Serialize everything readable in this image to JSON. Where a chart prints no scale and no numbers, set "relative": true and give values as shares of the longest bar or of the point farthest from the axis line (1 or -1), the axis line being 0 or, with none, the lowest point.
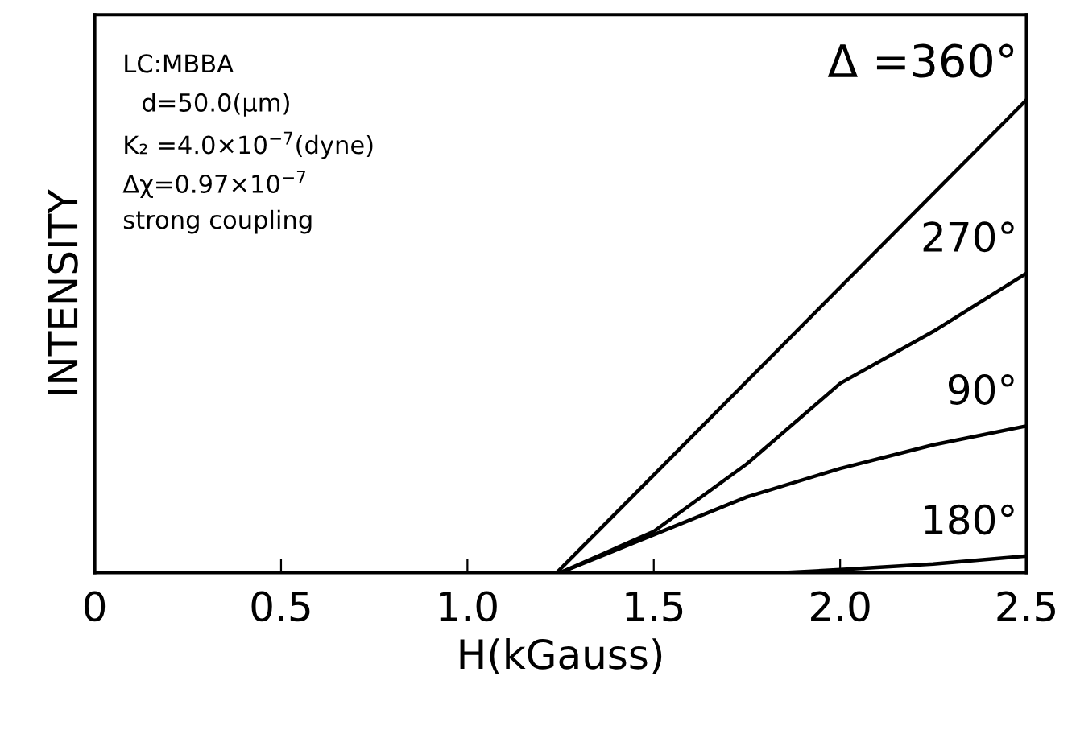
{
  "chart_data": {
    "type": "line",
    "relative": true,
    "xlabel": "H(kGauss)",
    "ylabel": "INTENSITY",
    "xlim": [
      0,
      2.5
    ],
    "xticks": [
      0,
      {
        "value": 0.5,
        "label": "0.5"
      },
      {
        "value": 1.0,
        "label": "1.0"
      },
      {
        "value": 1.5,
        "label": "1.5"
      },
      {
        "value": 2.0,
        "label": "2.0"
      },
      {
        "value": 2.5,
        "label": "2.5"
      }
    ],
    "tick_labels": "x",
    "grid": false,
    "legend": false,
    "marker": "none",
    "line_style": "solid",
    "series": [
      {
        "name": "Δ =360°",
        "color": "#000000",
        "x": [
          1.24,
          2.5
        ],
        "values": [
          0,
          1.0
        ]
      },
      {
        "name": "270°",
        "color": "#000000",
        "x": [
          1.25,
          1.5,
          1.75,
          2.0,
          2.25,
          2.5
        ],
        "values": [
          0,
          0.087,
          0.23,
          0.4,
          0.51,
          0.633
        ]
      },
      {
        "name": "90°",
        "color": "#000000",
        "x": [
          1.25,
          1.5,
          1.75,
          2.0,
          2.25,
          2.5
        ],
        "values": [
          0,
          0.08,
          0.16,
          0.22,
          0.27,
          0.31
        ]
      },
      {
        "name": "180°",
        "color": "#000000",
        "x": [
          1.85,
          2.0,
          2.25,
          2.5
        ],
        "values": [
          0,
          0.006,
          0.018,
          0.035
        ]
      }
    ],
    "annotations": [
      "LC:MBBA",
      "d=50.0(μm)",
      "K₂ =4.0×10$^{−7}$(dyne)",
      "Δχ=0.97×10$^{−7}$",
      "strong coupling"
    ]
  }
}
